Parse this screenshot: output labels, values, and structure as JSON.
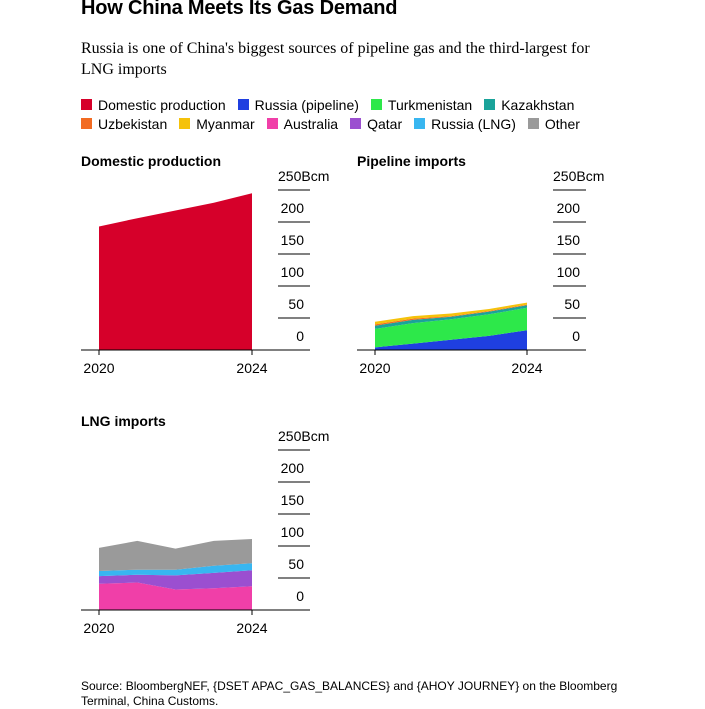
{
  "title": "How China Meets Its Gas Demand",
  "subtitle": "Russia is one of China's biggest sources of pipeline gas and the third-largest for LNG imports",
  "legend": {
    "items": [
      {
        "label": "Domestic production",
        "color": "#d6002a"
      },
      {
        "label": "Russia (pipeline)",
        "color": "#1f3fe0"
      },
      {
        "label": "Turkmenistan",
        "color": "#2de84a"
      },
      {
        "label": "Kazakhstan",
        "color": "#1aa39a"
      },
      {
        "label": "Uzbekistan",
        "color": "#f26b22"
      },
      {
        "label": "Myanmar",
        "color": "#f5c20a"
      },
      {
        "label": "Australia",
        "color": "#f03fa8"
      },
      {
        "label": "Qatar",
        "color": "#9b4fd0"
      },
      {
        "label": "Russia (LNG)",
        "color": "#38b6f0"
      },
      {
        "label": "Other",
        "color": "#9a9a9a"
      }
    ]
  },
  "source": "Source: BloombergNEF, {DSET APAC_GAS_BALANCES} and {AHOY JOURNEY} on the Bloomberg Terminal, China Customs.",
  "chart_data": [
    {
      "type": "area",
      "title": "Domestic production",
      "x": [
        2020,
        2021,
        2022,
        2023,
        2024
      ],
      "x_tick_labels": [
        "2020",
        "2024"
      ],
      "y_ticks": [
        0,
        50,
        100,
        150,
        200,
        250
      ],
      "y_tick_labels": [
        "0",
        "50",
        "100",
        "150",
        "200",
        "250Bcm"
      ],
      "ylim": [
        0,
        250
      ],
      "stacked": true,
      "series": [
        {
          "name": "Domestic production",
          "color": "#d6002a",
          "values": [
            193,
            206,
            218,
            230,
            245
          ]
        }
      ]
    },
    {
      "type": "area",
      "title": "Pipeline imports",
      "x": [
        2020,
        2021,
        2022,
        2023,
        2024
      ],
      "x_tick_labels": [
        "2020",
        "2024"
      ],
      "y_ticks": [
        0,
        50,
        100,
        150,
        200,
        250
      ],
      "y_tick_labels": [
        "0",
        "50",
        "100",
        "150",
        "200",
        "250Bcm"
      ],
      "ylim": [
        0,
        250
      ],
      "stacked": true,
      "series": [
        {
          "name": "Russia (pipeline)",
          "color": "#1f3fe0",
          "values": [
            4,
            10,
            16,
            22,
            31
          ]
        },
        {
          "name": "Turkmenistan",
          "color": "#2de84a",
          "values": [
            29,
            32,
            32,
            34,
            35
          ]
        },
        {
          "name": "Kazakhstan",
          "color": "#1aa39a",
          "values": [
            5,
            5,
            4,
            4,
            4
          ]
        },
        {
          "name": "Uzbekistan",
          "color": "#f26b22",
          "values": [
            2,
            2,
            1,
            1,
            1
          ]
        },
        {
          "name": "Myanmar",
          "color": "#f5c20a",
          "values": [
            4,
            4,
            4,
            3,
            3
          ]
        }
      ]
    },
    {
      "type": "area",
      "title": "LNG imports",
      "x": [
        2020,
        2021,
        2022,
        2023,
        2024
      ],
      "x_tick_labels": [
        "2020",
        "2024"
      ],
      "y_ticks": [
        0,
        50,
        100,
        150,
        200,
        250
      ],
      "y_tick_labels": [
        "0",
        "50",
        "100",
        "150",
        "200",
        "250Bcm"
      ],
      "ylim": [
        0,
        250
      ],
      "stacked": true,
      "series": [
        {
          "name": "Australia",
          "color": "#f03fa8",
          "values": [
            41,
            43,
            32,
            34,
            37
          ]
        },
        {
          "name": "Qatar",
          "color": "#9b4fd0",
          "values": [
            12,
            12,
            22,
            24,
            25
          ]
        },
        {
          "name": "Russia (LNG)",
          "color": "#38b6f0",
          "values": [
            8,
            8,
            9,
            11,
            11
          ]
        },
        {
          "name": "Other",
          "color": "#9a9a9a",
          "values": [
            36,
            45,
            33,
            39,
            38
          ]
        }
      ]
    }
  ]
}
